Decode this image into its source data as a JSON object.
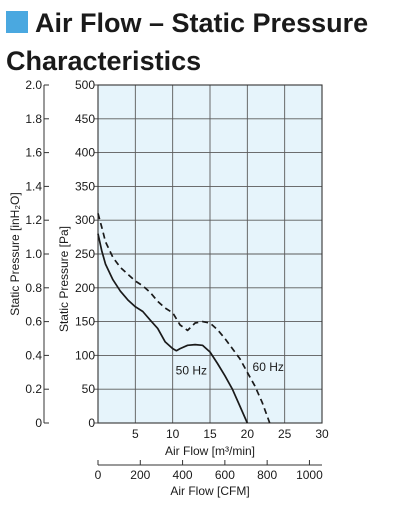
{
  "header": {
    "title_line1": "Air Flow – Static Pressure",
    "title_line2": "Characteristics",
    "marker_color": "#4aa8e0"
  },
  "colors": {
    "plot_background": "#e6f4fb",
    "grid": "#5a5a5a",
    "curve": "#1a1a1a"
  },
  "chart_data": {
    "type": "line",
    "title": "Air Flow – Static Pressure Characteristics",
    "grid": true,
    "xlabel": "Air Flow [m³/min]",
    "ylabel": "Static Pressure [Pa]",
    "xlim": [
      0,
      30
    ],
    "ylim": [
      0,
      500
    ],
    "x_ticks": [
      "5",
      "10",
      "15",
      "20",
      "25",
      "30"
    ],
    "y_ticks": [
      "0",
      "50",
      "100",
      "150",
      "200",
      "250",
      "300",
      "350",
      "400",
      "450",
      "500"
    ],
    "secondary_y": {
      "label": "Static Pressure [inH₂O]",
      "lim": [
        0,
        2.0
      ],
      "ticks": [
        "0",
        "0.2",
        "0.4",
        "0.6",
        "0.8",
        "1.0",
        "1.2",
        "1.4",
        "1.6",
        "1.8",
        "2.0"
      ]
    },
    "secondary_x": {
      "label": "Air Flow [CFM]",
      "lim": [
        0,
        1059.4
      ],
      "ticks": [
        0,
        200,
        400,
        600,
        800,
        1000
      ]
    },
    "series": [
      {
        "name": "50 Hz",
        "style": "solid",
        "x": [
          0,
          0.5,
          1,
          2,
          3,
          4,
          5,
          6,
          7,
          8,
          9,
          10,
          10.5,
          11,
          12,
          13,
          14,
          15,
          16,
          17,
          18,
          19,
          20
        ],
        "y": [
          280,
          255,
          235,
          212,
          195,
          182,
          172,
          165,
          152,
          140,
          120,
          110,
          107,
          110,
          115,
          116,
          115,
          105,
          88,
          70,
          50,
          25,
          0
        ]
      },
      {
        "name": "60 Hz",
        "style": "dashed",
        "x": [
          0,
          0.5,
          1,
          2,
          3,
          4,
          5,
          6,
          7,
          8,
          9,
          10,
          11,
          12,
          13,
          14,
          15,
          16,
          17,
          18,
          19,
          20,
          21,
          22,
          23
        ],
        "y": [
          310,
          290,
          268,
          245,
          230,
          220,
          210,
          203,
          193,
          180,
          170,
          163,
          145,
          137,
          148,
          150,
          148,
          138,
          125,
          110,
          95,
          75,
          55,
          30,
          0
        ]
      }
    ],
    "annotations": [
      {
        "text": "50 Hz",
        "x": 10.4,
        "y": 72
      },
      {
        "text": "60 Hz",
        "x": 20.7,
        "y": 77
      }
    ]
  }
}
